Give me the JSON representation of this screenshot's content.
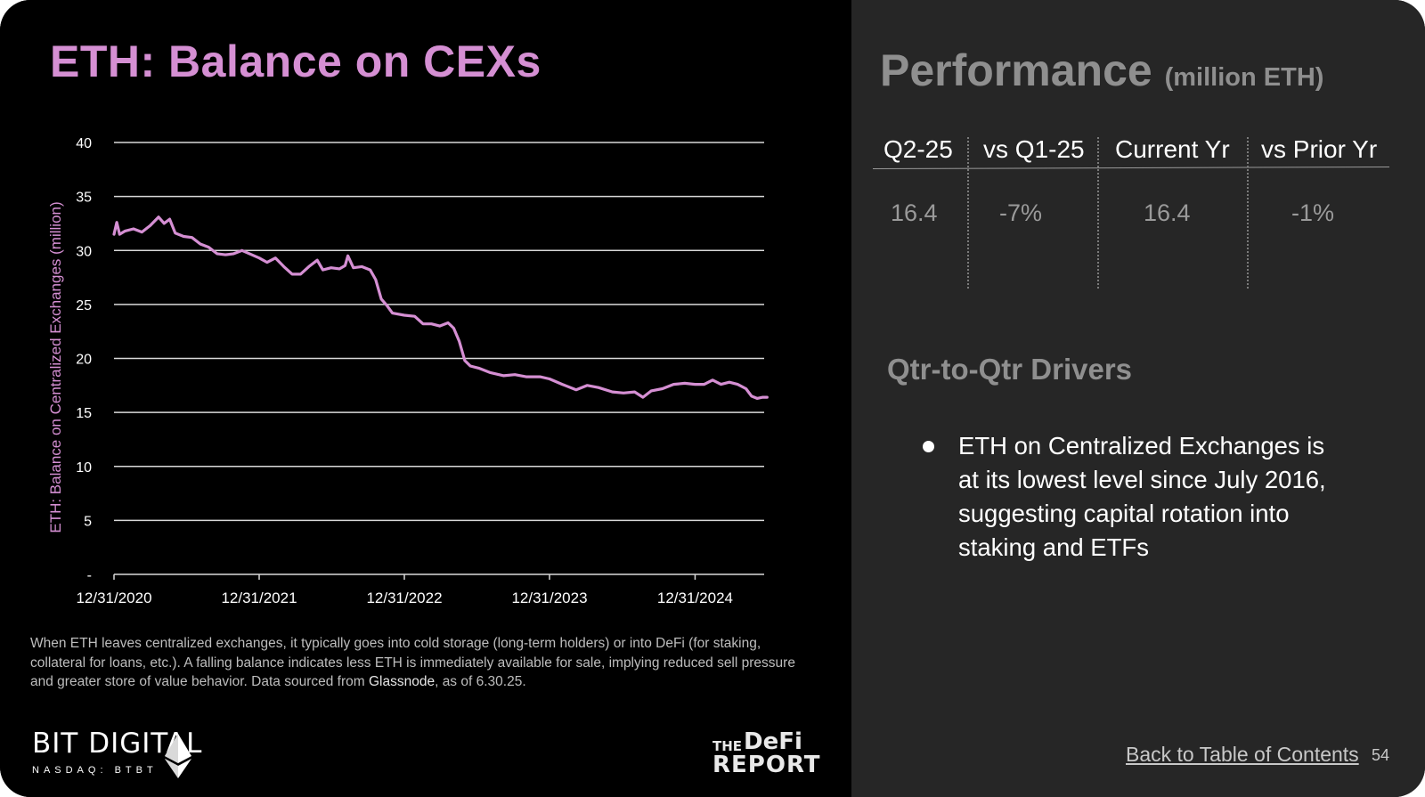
{
  "left": {
    "title": "ETH: Balance on CEXs",
    "note_text": "When ETH leaves centralized exchanges, it typically goes into cold storage (long-term holders) or into DeFi (for staking, collateral for loans, etc.). A falling balance indicates less ETH is immediately available for sale, implying reduced sell pressure and greater store of value behavior. Data sourced from ",
    "note_source": "Glassnode",
    "note_tail": ", as of 6.30.25."
  },
  "logos": {
    "bit_digital_name": "BIT DIGITAL",
    "bit_digital_ticker": "NASDAQ: BTBT",
    "defi_report_line1a": "THE",
    "defi_report_line1b": "DeFi",
    "defi_report_line2": "REPORT"
  },
  "chart_data": {
    "type": "line",
    "ylabel": "ETH: Balance on Centralized Exchanges (million)",
    "xlabel": "",
    "ylim": [
      0,
      40
    ],
    "yticks": [
      {
        "value": 0,
        "label": "-"
      },
      {
        "value": 5,
        "label": "5"
      },
      {
        "value": 10,
        "label": "10"
      },
      {
        "value": 15,
        "label": "15"
      },
      {
        "value": 20,
        "label": "20"
      },
      {
        "value": 25,
        "label": "25"
      },
      {
        "value": 30,
        "label": "30"
      },
      {
        "value": 35,
        "label": "35"
      },
      {
        "value": 40,
        "label": "40"
      }
    ],
    "xticks": [
      "12/31/2020",
      "12/31/2021",
      "12/31/2022",
      "12/31/2023",
      "12/31/2024"
    ],
    "grid": true,
    "color": "#d58fd3",
    "series": [
      {
        "points": [
          [
            "2020-12-31",
            31.5
          ],
          [
            "2021-01-07",
            32.6
          ],
          [
            "2021-01-14",
            31.5
          ],
          [
            "2021-01-28",
            31.8
          ],
          [
            "2021-02-18",
            32.0
          ],
          [
            "2021-03-11",
            31.7
          ],
          [
            "2021-04-01",
            32.3
          ],
          [
            "2021-04-22",
            33.1
          ],
          [
            "2021-05-06",
            32.5
          ],
          [
            "2021-05-20",
            32.9
          ],
          [
            "2021-06-03",
            31.6
          ],
          [
            "2021-06-24",
            31.3
          ],
          [
            "2021-07-15",
            31.2
          ],
          [
            "2021-08-05",
            30.6
          ],
          [
            "2021-08-26",
            30.3
          ],
          [
            "2021-09-16",
            29.7
          ],
          [
            "2021-10-07",
            29.6
          ],
          [
            "2021-10-28",
            29.7
          ],
          [
            "2021-11-18",
            30.0
          ],
          [
            "2021-12-31",
            29.3
          ],
          [
            "2022-01-20",
            28.9
          ],
          [
            "2022-02-10",
            29.3
          ],
          [
            "2022-03-03",
            28.5
          ],
          [
            "2022-03-24",
            27.8
          ],
          [
            "2022-04-14",
            27.8
          ],
          [
            "2022-05-05",
            28.5
          ],
          [
            "2022-05-26",
            29.1
          ],
          [
            "2022-06-09",
            28.2
          ],
          [
            "2022-06-30",
            28.4
          ],
          [
            "2022-07-21",
            28.3
          ],
          [
            "2022-08-04",
            28.6
          ],
          [
            "2022-08-11",
            29.5
          ],
          [
            "2022-08-25",
            28.4
          ],
          [
            "2022-09-15",
            28.5
          ],
          [
            "2022-10-06",
            28.2
          ],
          [
            "2022-10-20",
            27.3
          ],
          [
            "2022-11-03",
            25.5
          ],
          [
            "2022-11-17",
            24.9
          ],
          [
            "2022-12-01",
            24.2
          ],
          [
            "2022-12-31",
            24.0
          ],
          [
            "2023-01-26",
            23.9
          ],
          [
            "2023-02-16",
            23.2
          ],
          [
            "2023-03-09",
            23.2
          ],
          [
            "2023-03-30",
            23.0
          ],
          [
            "2023-04-20",
            23.3
          ],
          [
            "2023-05-04",
            22.8
          ],
          [
            "2023-05-18",
            21.6
          ],
          [
            "2023-06-01",
            19.8
          ],
          [
            "2023-06-15",
            19.3
          ],
          [
            "2023-07-06",
            19.1
          ],
          [
            "2023-08-03",
            18.7
          ],
          [
            "2023-09-07",
            18.4
          ],
          [
            "2023-10-05",
            18.5
          ],
          [
            "2023-11-02",
            18.3
          ],
          [
            "2023-12-07",
            18.3
          ],
          [
            "2023-12-31",
            18.1
          ],
          [
            "2024-02-01",
            17.6
          ],
          [
            "2024-03-07",
            17.1
          ],
          [
            "2024-04-04",
            17.5
          ],
          [
            "2024-05-02",
            17.3
          ],
          [
            "2024-06-06",
            16.9
          ],
          [
            "2024-07-04",
            16.8
          ],
          [
            "2024-08-01",
            16.9
          ],
          [
            "2024-08-22",
            16.4
          ],
          [
            "2024-09-12",
            17.0
          ],
          [
            "2024-10-10",
            17.2
          ],
          [
            "2024-11-07",
            17.6
          ],
          [
            "2024-12-05",
            17.7
          ],
          [
            "2024-12-31",
            17.6
          ],
          [
            "2025-01-23",
            17.6
          ],
          [
            "2025-02-13",
            18.0
          ],
          [
            "2025-03-06",
            17.6
          ],
          [
            "2025-03-27",
            17.8
          ],
          [
            "2025-04-17",
            17.6
          ],
          [
            "2025-05-08",
            17.2
          ],
          [
            "2025-05-22",
            16.5
          ],
          [
            "2025-06-05",
            16.3
          ],
          [
            "2025-06-19",
            16.4
          ],
          [
            "2025-06-30",
            16.4
          ]
        ]
      }
    ]
  },
  "performance": {
    "title": "Performance",
    "unit": "(million ETH)",
    "headers": [
      "Q2-25",
      "vs Q1-25",
      "Current Yr",
      "vs Prior Yr"
    ],
    "values": [
      "16.4",
      "-7%",
      "16.4",
      "-1%"
    ]
  },
  "drivers": {
    "title": "Qtr-to-Qtr Drivers",
    "bullets": [
      "ETH on Centralized Exchanges is at its lowest level since July 2016, suggesting capital rotation into staking and ETFs"
    ]
  },
  "footer": {
    "toc_link": "Back to Table of Contents",
    "page_number": "54"
  }
}
